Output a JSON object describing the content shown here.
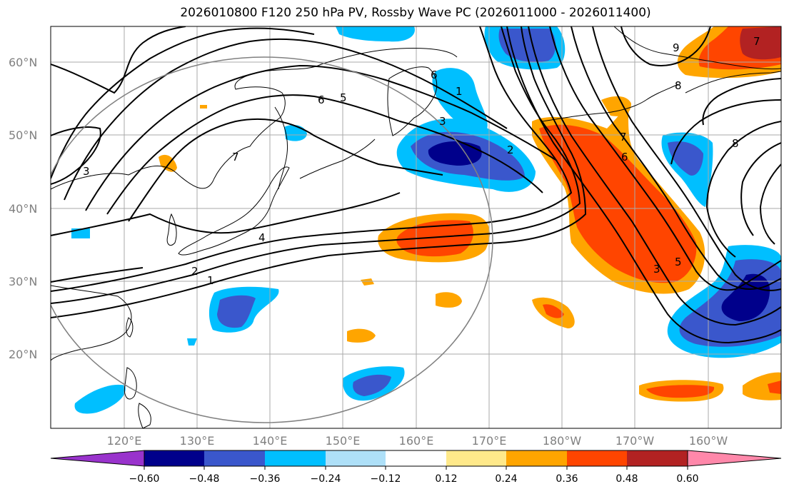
{
  "title": "2026010800 F120 250 hPa PV, Rossby Wave PC (2026011000 - 2026011400)",
  "lat_labels": [
    "60°N",
    "50°N",
    "40°N",
    "30°N",
    "20°N"
  ],
  "lon_labels": [
    "120°E",
    "130°E",
    "140°E",
    "150°E",
    "160°E",
    "170°E",
    "180°W",
    "170°W",
    "160°W"
  ],
  "colorbar": {
    "ticks": [
      "−0.60",
      "−0.48",
      "−0.36",
      "−0.24",
      "−0.12",
      "0.12",
      "0.24",
      "0.36",
      "0.48",
      "0.60"
    ],
    "colors": [
      "#9933cc",
      "#00008b",
      "#3a57cc",
      "#00bfff",
      "#aee0f8",
      "#ffffff",
      "#ffe98a",
      "#ffa500",
      "#ff4500",
      "#b22222",
      "#ff88aa"
    ]
  },
  "pv_contour_labels": [
    "7",
    "6",
    "5",
    "6",
    "3",
    "2",
    "4",
    "2",
    "1",
    "3",
    "1",
    "7",
    "6",
    "5",
    "3",
    "7",
    "8",
    "9",
    "8"
  ]
}
